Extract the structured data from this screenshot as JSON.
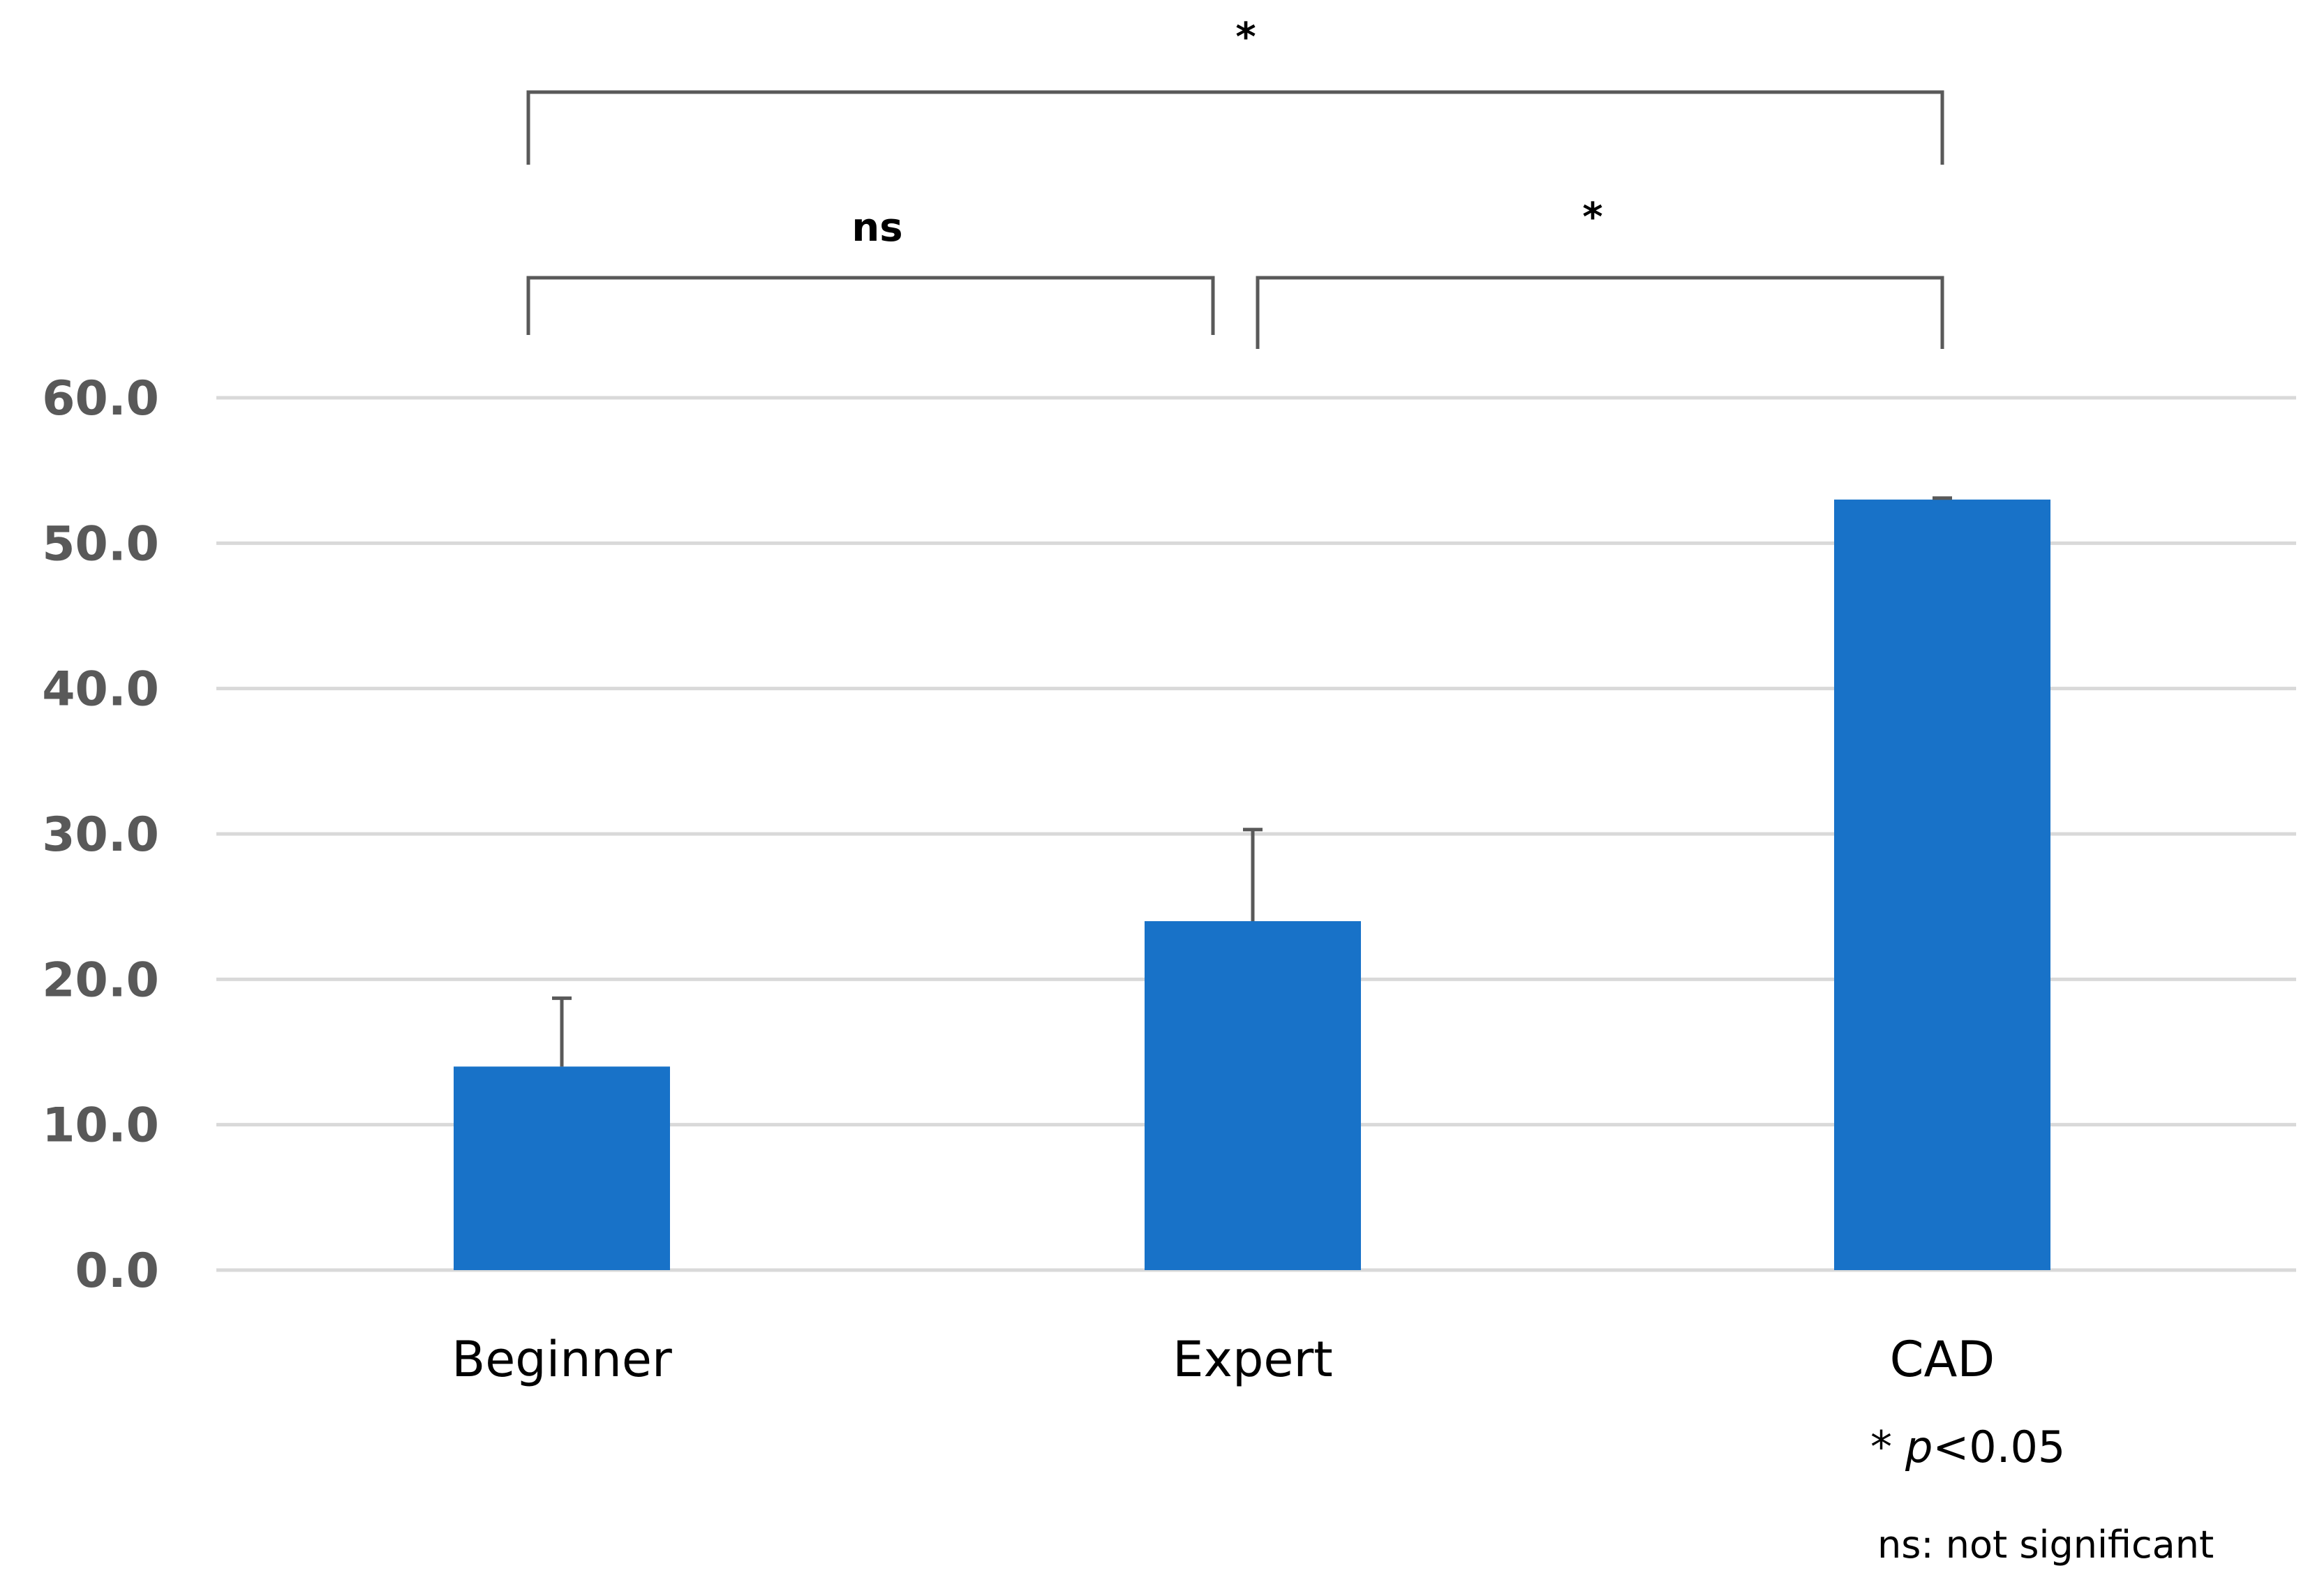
{
  "chart_data": {
    "type": "bar",
    "title": "",
    "xlabel": "",
    "ylabel": "",
    "categories": [
      "Beginner",
      "Expert",
      "CAD"
    ],
    "values": [
      14.0,
      24.0,
      53.0
    ],
    "error_plus": [
      4.7,
      6.3,
      0.1
    ],
    "ylim": [
      0,
      60
    ],
    "yticks": [
      0,
      10,
      20,
      30,
      40,
      50,
      60
    ],
    "ytick_labels": [
      "0.0",
      "10.0",
      "20.0",
      "30.0",
      "40.0",
      "50.0",
      "60.0"
    ],
    "grid": true,
    "bar_color": "#1872C8",
    "comparisons": [
      {
        "from": "Beginner",
        "to": "CAD",
        "label": "*"
      },
      {
        "from": "Beginner",
        "to": "Expert",
        "label": "ns"
      },
      {
        "from": "Expert",
        "to": "CAD",
        "label": "*"
      }
    ],
    "notes": {
      "significance_star": "*",
      "significance_p": "p",
      "significance_value": "<0.05",
      "ns_note": "ns: not significant"
    }
  }
}
